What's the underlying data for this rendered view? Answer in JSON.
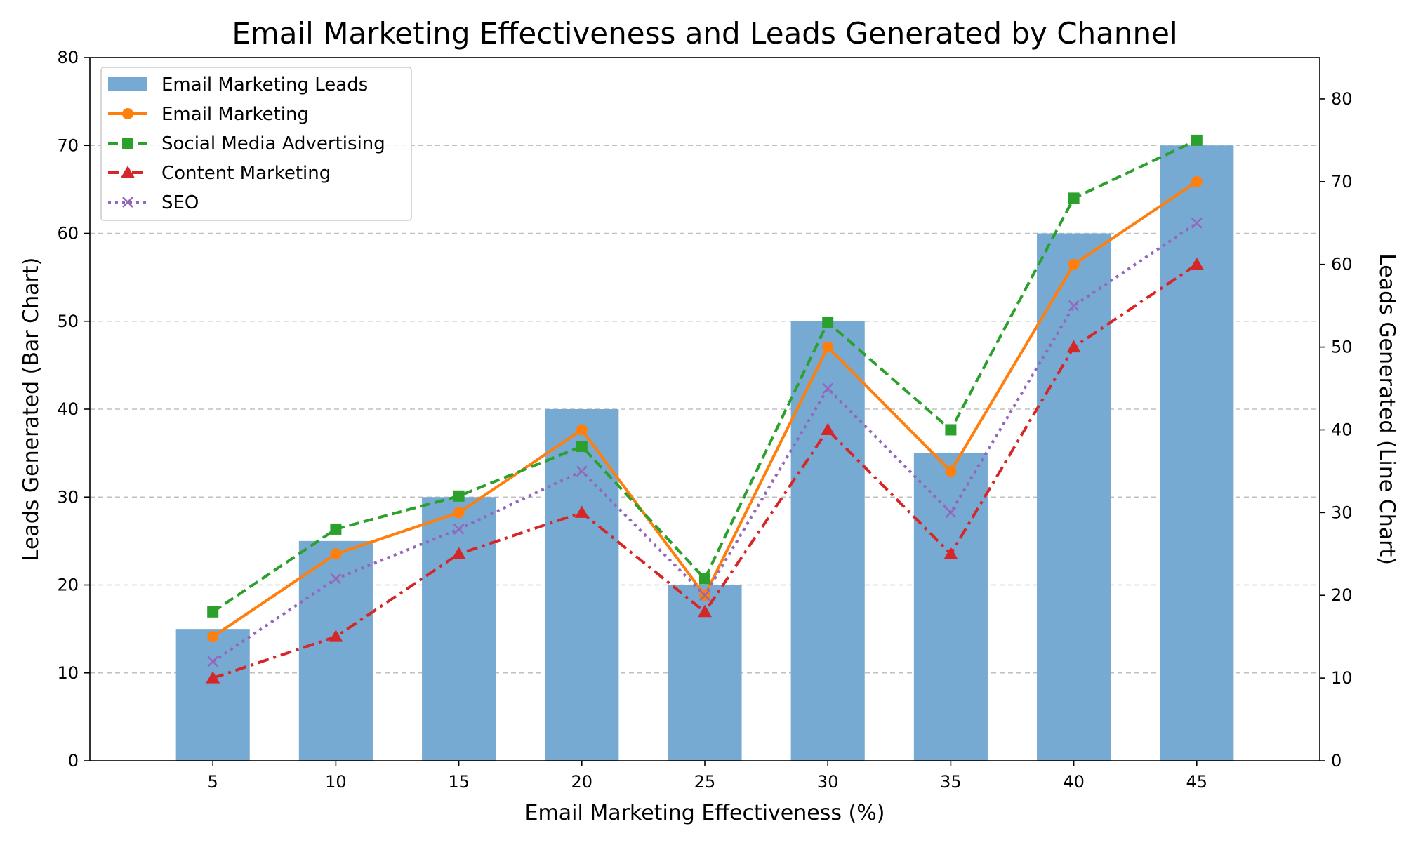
{
  "chart_data": {
    "type": "bar",
    "title": "Email Marketing Effectiveness and Leads Generated by Channel",
    "xlabel": "Email Marketing Effectiveness (%)",
    "ylabel_left": "Leads Generated (Bar Chart)",
    "ylabel_right": "Leads Generated (Line Chart)",
    "categories": [
      "5",
      "10",
      "15",
      "20",
      "25",
      "30",
      "35",
      "40",
      "45"
    ],
    "x": [
      5,
      10,
      15,
      20,
      25,
      30,
      35,
      40,
      45
    ],
    "xlim": [
      0,
      50
    ],
    "ylim_left": [
      0,
      80
    ],
    "ylim_right": [
      0,
      85
    ],
    "yticks_left": [
      0,
      10,
      20,
      30,
      40,
      50,
      60,
      70,
      80
    ],
    "yticks_right": [
      0,
      10,
      20,
      30,
      40,
      50,
      60,
      70,
      80
    ],
    "grid": "horizontal dashed",
    "legend_position": "top-left",
    "bar_series": {
      "name": "Email Marketing Leads",
      "color": "#77aad2",
      "values": [
        15,
        25,
        30,
        40,
        20,
        50,
        35,
        60,
        70
      ]
    },
    "line_series": [
      {
        "name": "Email Marketing",
        "color": "#ff7f0e",
        "style": "solid",
        "marker": "circle",
        "values": [
          15,
          25,
          30,
          40,
          20,
          50,
          35,
          60,
          70
        ]
      },
      {
        "name": "Social Media Advertising",
        "color": "#2ca02c",
        "style": "dashed",
        "marker": "square",
        "values": [
          18,
          28,
          32,
          38,
          22,
          53,
          40,
          68,
          75
        ]
      },
      {
        "name": "Content Marketing",
        "color": "#d62728",
        "style": "dashdot",
        "marker": "triangle",
        "values": [
          10,
          15,
          25,
          30,
          18,
          40,
          25,
          50,
          60
        ]
      },
      {
        "name": "SEO",
        "color": "#9467bd",
        "style": "dotted",
        "marker": "x",
        "values": [
          12,
          22,
          28,
          35,
          20,
          45,
          30,
          55,
          65
        ]
      }
    ]
  }
}
